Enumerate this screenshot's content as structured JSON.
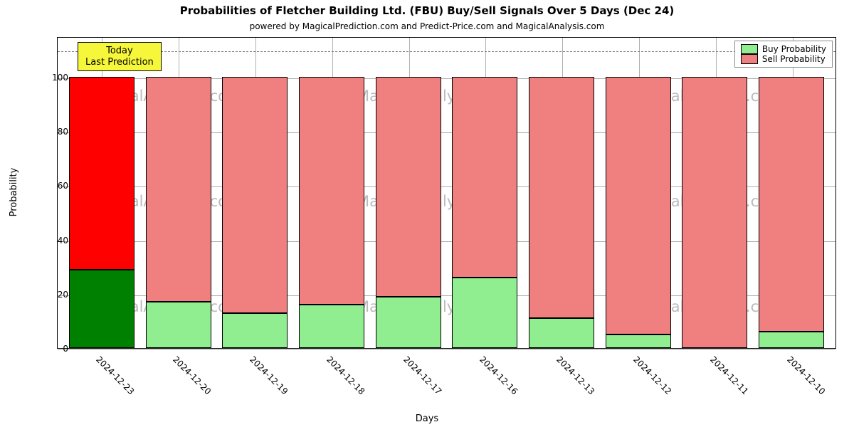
{
  "title": "Probabilities of Fletcher Building Ltd. (FBU) Buy/Sell Signals Over 5 Days (Dec 24)",
  "title_fontsize": 15,
  "subtitle": "powered by MagicalPrediction.com and Predict-Price.com and MagicalAnalysis.com",
  "subtitle_fontsize": 12,
  "xlabel": "Days",
  "ylabel": "Probability",
  "axis_label_fontsize": 13,
  "tick_fontsize": 12,
  "ylim": [
    0,
    115
  ],
  "ytick_values": [
    0,
    20,
    40,
    60,
    80,
    100
  ],
  "ref_line_value": 110,
  "ref_line_color": "#808080",
  "grid_color": "#b0b0b0",
  "colors": {
    "buy_normal": "#90ee90",
    "sell_normal": "#f08080",
    "buy_today": "#008000",
    "sell_today": "#ff0000",
    "border": "#000000",
    "callout_bg": "#f6f73a",
    "plot_border": "#000000",
    "watermark": "#bbbbbb"
  },
  "categories": [
    "2024-12-23",
    "2024-12-20",
    "2024-12-19",
    "2024-12-18",
    "2024-12-17",
    "2024-12-16",
    "2024-12-13",
    "2024-12-12",
    "2024-12-11",
    "2024-12-10"
  ],
  "bars": [
    {
      "buy": 29,
      "sell": 71,
      "today": true
    },
    {
      "buy": 17,
      "sell": 83,
      "today": false
    },
    {
      "buy": 13,
      "sell": 87,
      "today": false
    },
    {
      "buy": 16,
      "sell": 84,
      "today": false
    },
    {
      "buy": 19,
      "sell": 81,
      "today": false
    },
    {
      "buy": 26,
      "sell": 74,
      "today": false
    },
    {
      "buy": 11,
      "sell": 89,
      "today": false
    },
    {
      "buy": 5,
      "sell": 95,
      "today": false
    },
    {
      "buy": 0,
      "sell": 100,
      "today": false
    },
    {
      "buy": 6,
      "sell": 94,
      "today": false
    }
  ],
  "callout": {
    "line1": "Today",
    "line2": "Last Prediction",
    "fontsize": 13
  },
  "legend": {
    "buy": "Buy Probability",
    "sell": "Sell Probability",
    "fontsize": 12
  },
  "watermark_text": "MagicalAnalysis.com",
  "watermark_fontsize": 21
}
